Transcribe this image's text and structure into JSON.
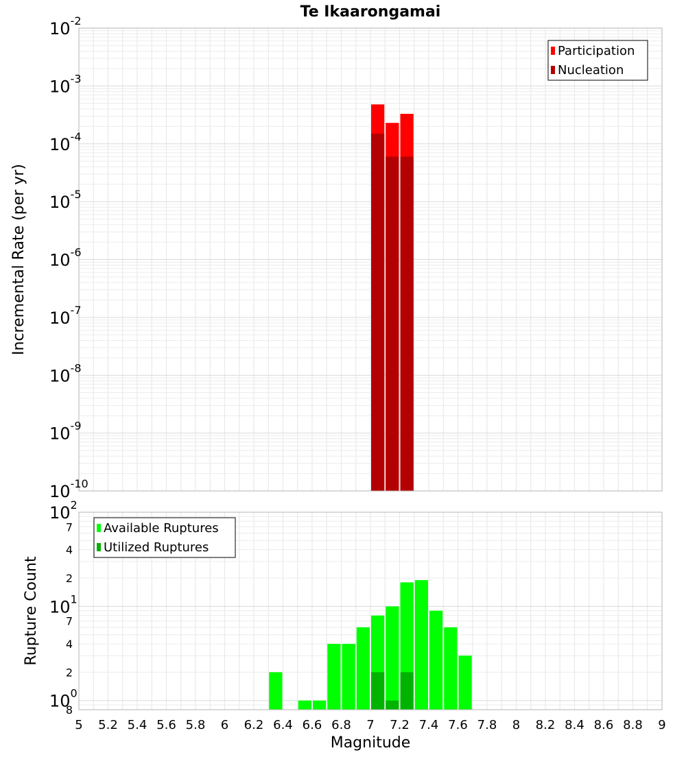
{
  "title": "Te Ikaarongamai",
  "xlabel": "Magnitude",
  "chart_data": [
    {
      "type": "bar",
      "title": "Te Ikaarongamai",
      "xlabel": "Magnitude",
      "ylabel": "Incremental Rate (per yr)",
      "yscale": "log",
      "xlim": [
        5,
        9
      ],
      "ylim": [
        1e-10,
        0.01
      ],
      "x_ticks": [
        5,
        5.2,
        5.4,
        5.6,
        5.8,
        6,
        6.2,
        6.4,
        6.6,
        6.8,
        7,
        7.2,
        7.4,
        7.6,
        7.8,
        8,
        8.2,
        8.4,
        8.6,
        8.8,
        9
      ],
      "x_tick_labels": [
        "5",
        "5.2",
        "5.4",
        "5.6",
        "5.8",
        "6",
        "6.2",
        "6.4",
        "6.6",
        "6.8",
        "7",
        "7.2",
        "7.4",
        "7.6",
        "7.8",
        "8",
        "8.2",
        "8.4",
        "8.6",
        "8.8",
        "9"
      ],
      "y_ticks": [
        {
          "base": "10",
          "exp": "-10"
        },
        {
          "base": "10",
          "exp": "-9"
        },
        {
          "base": "10",
          "exp": "-8"
        },
        {
          "base": "10",
          "exp": "-7"
        },
        {
          "base": "10",
          "exp": "-6"
        },
        {
          "base": "10",
          "exp": "-5"
        },
        {
          "base": "10",
          "exp": "-4"
        },
        {
          "base": "10",
          "exp": "-3"
        },
        {
          "base": "10",
          "exp": "-2"
        }
      ],
      "grid": true,
      "legend_position": "top-right",
      "bin_width": 0.1,
      "series": [
        {
          "name": "Participation",
          "color": "#ff0000",
          "x": [
            7.05,
            7.15,
            7.25
          ],
          "values": [
            0.00048,
            0.00023,
            0.00033
          ]
        },
        {
          "name": "Nucleation",
          "color": "#b30000",
          "x": [
            7.05,
            7.15,
            7.25
          ],
          "values": [
            0.00015,
            6e-05,
            6e-05
          ]
        }
      ]
    },
    {
      "type": "bar",
      "ylabel": "Rupture Count",
      "yscale": "log",
      "xlim": [
        5,
        9
      ],
      "ylim": [
        0.8,
        100
      ],
      "x_ticks": [
        5,
        5.2,
        5.4,
        5.6,
        5.8,
        6,
        6.2,
        6.4,
        6.6,
        6.8,
        7,
        7.2,
        7.4,
        7.6,
        7.8,
        8,
        8.2,
        8.4,
        8.6,
        8.8,
        9
      ],
      "x_tick_labels": [
        "5",
        "5.2",
        "5.4",
        "5.6",
        "5.8",
        "6",
        "6.2",
        "6.4",
        "6.6",
        "6.8",
        "7",
        "7.2",
        "7.4",
        "7.6",
        "7.8",
        "8",
        "8.2",
        "8.4",
        "8.6",
        "8.8",
        "9"
      ],
      "y_ticks": [
        {
          "value": 100,
          "base": "10",
          "exp": "2"
        },
        {
          "value": 70,
          "label": "7"
        },
        {
          "value": 40,
          "label": "4"
        },
        {
          "value": 20,
          "label": "2"
        },
        {
          "value": 10,
          "base": "10",
          "exp": "1"
        },
        {
          "value": 7,
          "label": "7"
        },
        {
          "value": 4,
          "label": "4"
        },
        {
          "value": 2,
          "label": "2"
        },
        {
          "value": 1,
          "base": "10",
          "exp": "0"
        },
        {
          "value": 0.8,
          "label": "8"
        }
      ],
      "grid": true,
      "legend_position": "top-left",
      "bin_width": 0.1,
      "series": [
        {
          "name": "Available Ruptures",
          "color": "#00ff00",
          "x": [
            6.35,
            6.55,
            6.65,
            6.75,
            6.85,
            6.95,
            7.05,
            7.15,
            7.25,
            7.35,
            7.45,
            7.55,
            7.65
          ],
          "values": [
            2,
            1,
            1,
            4,
            4,
            6,
            8,
            10,
            18,
            19,
            9,
            6,
            3
          ]
        },
        {
          "name": "Utilized Ruptures",
          "color": "#00b300",
          "x": [
            7.05,
            7.15,
            7.25
          ],
          "values": [
            2,
            1,
            2
          ]
        }
      ]
    }
  ]
}
